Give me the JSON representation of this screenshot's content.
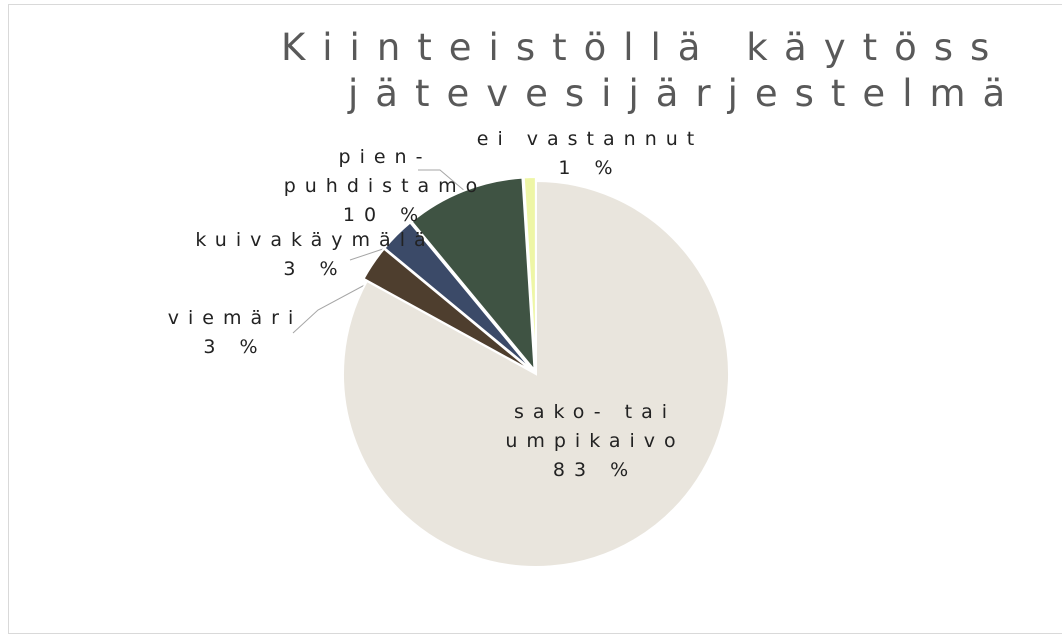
{
  "chart_data": {
    "type": "pie",
    "title": [
      "Kiinteistöllä käytöss",
      "jätevesijärjestelmä"
    ],
    "categories": [
      "sako- tai umpikaivo",
      "viemäri",
      "kuivakäymälä",
      "pien-puhdistamo",
      "ei vastannut"
    ],
    "values": [
      83,
      3,
      3,
      10,
      1
    ],
    "value_labels": [
      "83 %",
      "3 %",
      "3 %",
      "10 %",
      "1 %"
    ],
    "colors": [
      "#e9e5dd",
      "#4e3e2e",
      "#3b4a68",
      "#3f5343",
      "#eef6a6"
    ]
  }
}
